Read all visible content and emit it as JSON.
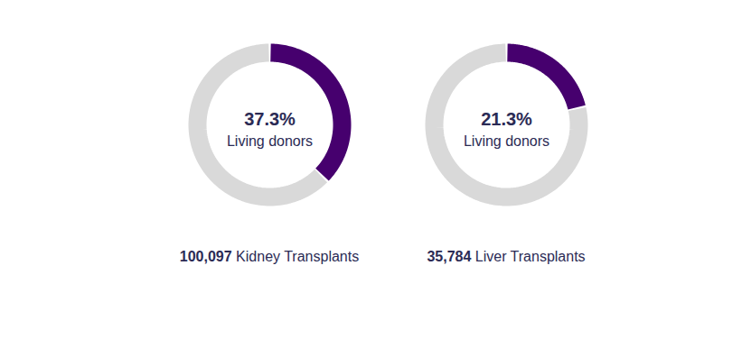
{
  "chart_data": [
    {
      "type": "donut",
      "title": "Kidney Transplants",
      "total": 100097,
      "categories": [
        "Living donors",
        null
      ],
      "values": [
        37.3,
        62.7
      ],
      "value_labels": [
        "37.3%",
        null
      ],
      "colors": [
        "#46006e",
        "#d9d9d9"
      ],
      "data_labels": true
    },
    {
      "type": "donut",
      "title": "Liver Transplants",
      "total": 35784,
      "categories": [
        "Living donors",
        null
      ],
      "values": [
        21.3,
        78.7
      ],
      "value_labels": [
        "21.3%",
        null
      ],
      "colors": [
        "#46006e",
        "#d9d9d9"
      ],
      "data_labels": true
    }
  ]
}
